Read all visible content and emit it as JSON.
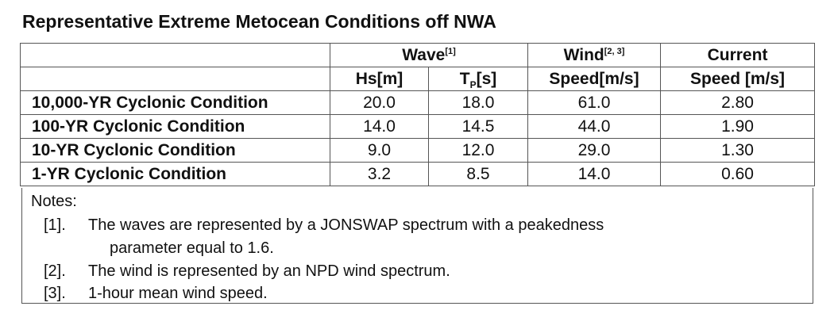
{
  "title": "Representative Extreme Metocean Conditions off NWA",
  "headers": {
    "wave": "Wave",
    "wave_ref": "[1]",
    "wind": "Wind",
    "wind_ref": "[2, 3]",
    "current": "Current",
    "hs": "Hs[m]",
    "tp_base": "T",
    "tp_sub": "P",
    "tp_unit": "[s]",
    "wind_speed": "Speed[m/s]",
    "current_speed": "Speed [m/s]"
  },
  "rows": [
    {
      "label": "10,000-YR Cyclonic Condition",
      "hs": "20.0",
      "tp": "18.0",
      "wind": "61.0",
      "current": "2.80"
    },
    {
      "label": "100-YR Cyclonic Condition",
      "hs": "14.0",
      "tp": "14.5",
      "wind": "44.0",
      "current": "1.90"
    },
    {
      "label": "10-YR Cyclonic Condition",
      "hs": "9.0",
      "tp": "12.0",
      "wind": "29.0",
      "current": "1.30"
    },
    {
      "label": "1-YR Cyclonic Condition",
      "hs": "3.2",
      "tp": "8.5",
      "wind": "14.0",
      "current": "0.60"
    }
  ],
  "notes": {
    "heading": "Notes:",
    "items": [
      {
        "num": "[1].",
        "text": "The waves are represented by a JONSWAP spectrum with a peakedness",
        "cont": "parameter equal to 1.6."
      },
      {
        "num": "[2].",
        "text": "The wind is represented by an NPD wind spectrum."
      },
      {
        "num": "[3].",
        "text": "1-hour mean wind speed."
      }
    ]
  }
}
